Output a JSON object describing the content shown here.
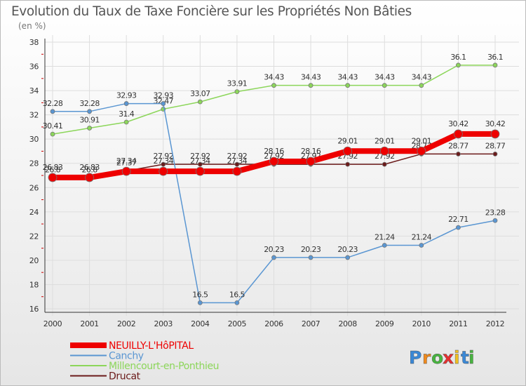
{
  "chart_data": {
    "type": "line",
    "title": "Evolution du Taux de Taxe Foncière sur les Propriétés Non Bâties",
    "subtitle": "(en %)",
    "xlabel": "",
    "ylabel": "",
    "ylim": [
      16,
      38
    ],
    "yticks": [
      16,
      18,
      20,
      22,
      24,
      26,
      28,
      30,
      32,
      34,
      36,
      38
    ],
    "categories": [
      "2000",
      "2001",
      "2002",
      "2003",
      "2004",
      "2005",
      "2006",
      "2007",
      "2008",
      "2009",
      "2010",
      "2011",
      "2012"
    ],
    "grid": true,
    "series": [
      {
        "name": "Drucat",
        "color": "#6b1a1a",
        "values": [
          26.8,
          26.8,
          27.37,
          27.92,
          27.92,
          27.92,
          27.92,
          27.92,
          27.92,
          27.92,
          28.77,
          28.77,
          28.77
        ],
        "labels": [
          "26.8",
          "26.8",
          "27.37",
          "27.92",
          "27.92",
          "27.92",
          "27.92",
          "27.92",
          "27.92",
          "27.92",
          "28.77",
          "28.77",
          "28.77"
        ]
      },
      {
        "name": "Millencourt-en-Ponthieu",
        "color": "#8cd65a",
        "values": [
          30.41,
          30.91,
          31.4,
          32.47,
          33.07,
          33.91,
          34.43,
          34.43,
          34.43,
          34.43,
          34.43,
          36.1,
          36.1
        ],
        "labels": [
          "30.41",
          "30.91",
          "31.4",
          "32.47",
          "33.07",
          "33.91",
          "34.43",
          "34.43",
          "34.43",
          "34.43",
          "34.43",
          "36.1",
          "36.1"
        ]
      },
      {
        "name": "Canchy",
        "color": "#5a96d2",
        "values": [
          32.28,
          32.28,
          32.93,
          32.93,
          16.5,
          16.5,
          20.23,
          20.23,
          20.23,
          21.24,
          21.24,
          22.71,
          23.28
        ],
        "labels": [
          "32.28",
          "32.28",
          "32.93",
          "32.93",
          "16.5",
          "16.5",
          "20.23",
          "20.23",
          "20.23",
          "21.24",
          "21.24",
          "22.71",
          "23.28"
        ]
      },
      {
        "name": "NEUILLY-L'HôPITAL",
        "color": "#ee0000",
        "values": [
          26.83,
          26.83,
          27.34,
          27.34,
          27.34,
          27.34,
          28.16,
          28.16,
          29.01,
          29.01,
          29.01,
          30.42,
          30.42
        ],
        "labels": [
          "26.83",
          "26.83",
          "27.34",
          "27.34",
          "27.34",
          "27.34",
          "28.16",
          "28.16",
          "29.01",
          "29.01",
          "29.01",
          "30.42",
          "30.42"
        ]
      }
    ],
    "legend": [
      {
        "name": "NEUILLY-L'HôPITAL",
        "color": "#ee0000"
      },
      {
        "name": "Canchy",
        "color": "#5a96d2"
      },
      {
        "name": "Millencourt-en-Ponthieu",
        "color": "#8cd65a"
      },
      {
        "name": "Drucat",
        "color": "#6b1a1a"
      }
    ],
    "legend_position": "bottom-left"
  },
  "logo": {
    "text": "Proxiti",
    "letters": [
      "P",
      "r",
      "o",
      "x",
      "i",
      "t",
      "i"
    ],
    "colors": [
      "#3a88d6",
      "#f08a1c",
      "#47b43f",
      "#e53030",
      "#f0c020",
      "#3a88d6",
      "#47b43f"
    ]
  }
}
